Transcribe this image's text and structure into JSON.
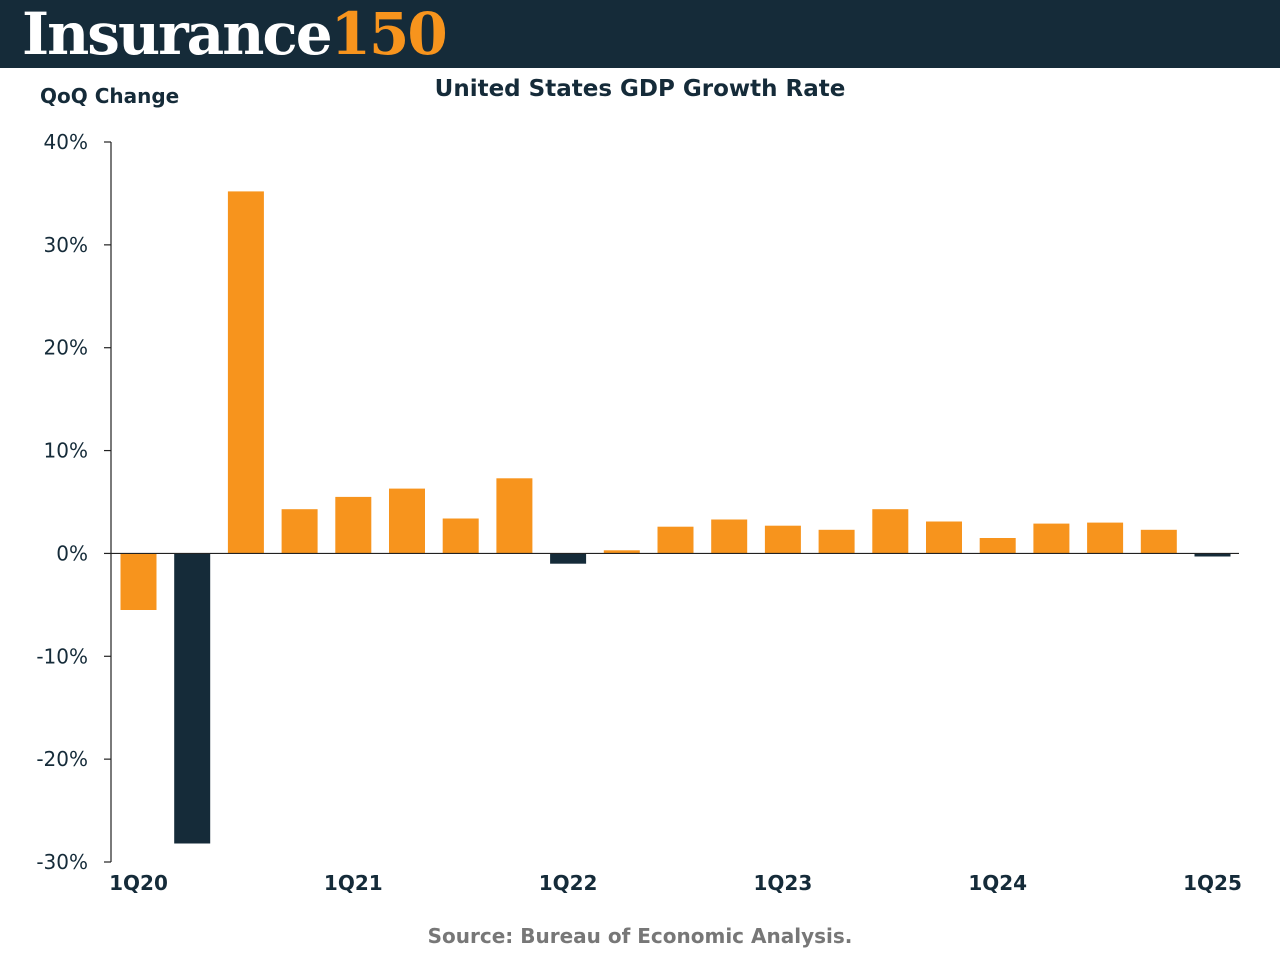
{
  "header": {
    "logo_word": "Insurance",
    "logo_number": "150",
    "background": "#152b39",
    "accent": "#f7941d"
  },
  "footer": {
    "source": "Source: Bureau of Economic Analysis."
  },
  "chart_data": {
    "type": "bar",
    "title": "United States GDP Growth Rate",
    "ylabel": "QoQ Change",
    "xlabel": "",
    "ylim": [
      -30,
      40
    ],
    "yticks": [
      40,
      30,
      20,
      10,
      0,
      -10,
      -20,
      -30
    ],
    "ytick_labels": [
      "40%",
      "30%",
      "20%",
      "10%",
      "0%",
      "-10%",
      "-20%",
      "-30%"
    ],
    "categories": [
      "1Q20",
      "2Q20",
      "3Q20",
      "4Q20",
      "1Q21",
      "2Q21",
      "3Q21",
      "4Q21",
      "1Q22",
      "2Q22",
      "3Q22",
      "4Q22",
      "1Q23",
      "2Q23",
      "3Q23",
      "4Q23",
      "1Q24",
      "2Q24",
      "3Q24",
      "4Q24",
      "1Q25"
    ],
    "visible_x_labels": [
      "1Q20",
      "1Q21",
      "1Q22",
      "1Q23",
      "1Q24",
      "1Q25"
    ],
    "values": [
      -5.5,
      -28.2,
      35.2,
      4.3,
      5.5,
      6.3,
      3.4,
      7.3,
      -1.0,
      0.3,
      2.6,
      3.3,
      2.7,
      2.3,
      4.3,
      3.1,
      1.5,
      2.9,
      3.0,
      2.3,
      -0.3
    ],
    "bar_colors": [
      "#f7941d",
      "#152b39",
      "#f7941d",
      "#f7941d",
      "#f7941d",
      "#f7941d",
      "#f7941d",
      "#f7941d",
      "#152b39",
      "#f7941d",
      "#f7941d",
      "#f7941d",
      "#f7941d",
      "#f7941d",
      "#f7941d",
      "#f7941d",
      "#f7941d",
      "#f7941d",
      "#f7941d",
      "#f7941d",
      "#152b39"
    ],
    "grid": false,
    "legend": "none"
  }
}
